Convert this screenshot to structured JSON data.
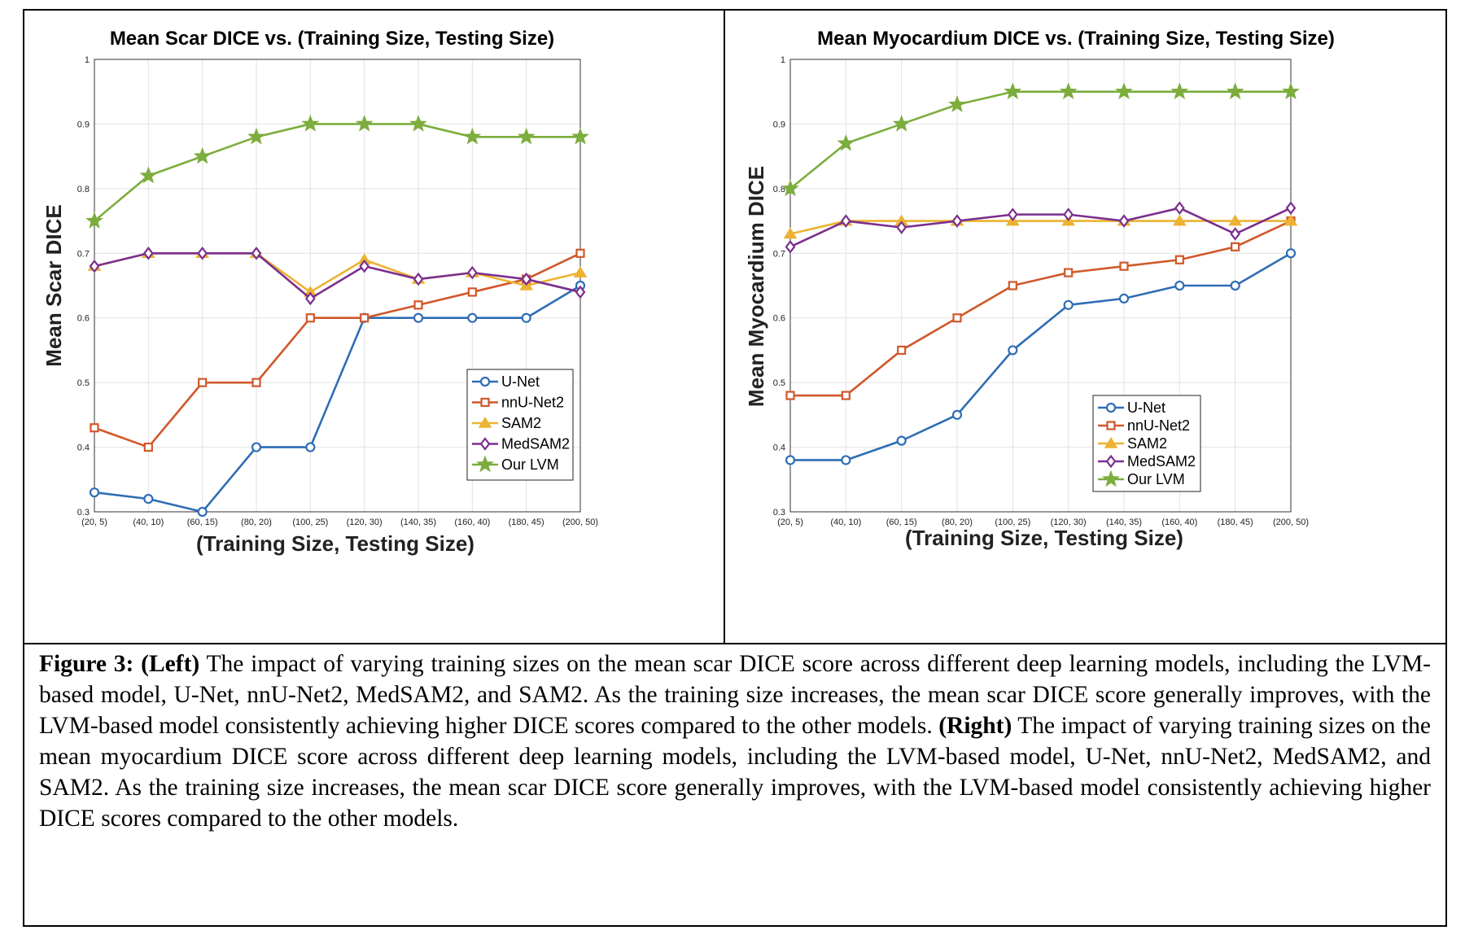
{
  "chart_data": [
    {
      "type": "line",
      "title": "Mean Scar DICE vs. (Training Size, Testing Size)",
      "xlabel": "(Training Size, Testing Size)",
      "ylabel": "Mean Scar DICE",
      "categories": [
        "(20, 5)",
        "(40, 10)",
        "(60, 15)",
        "(80, 20)",
        "(100, 25)",
        "(120, 30)",
        "(140, 35)",
        "(160, 40)",
        "(180, 45)",
        "(200, 50)"
      ],
      "ylim": [
        0.3,
        1
      ],
      "yticks": [
        0.3,
        0.4,
        0.5,
        0.6,
        0.7,
        0.8,
        0.9,
        1
      ],
      "ytick_labels": [
        "0.3",
        "0.4",
        "0.5",
        "0.6",
        "0.7",
        "0.8",
        "0.9",
        "1"
      ],
      "grid": true,
      "legend_position": "bottom-right",
      "series": [
        {
          "name": "U-Net",
          "marker": "circle",
          "color": "#2f6db5",
          "values": [
            0.33,
            0.32,
            0.3,
            0.4,
            0.4,
            0.6,
            0.6,
            0.6,
            0.6,
            0.65
          ]
        },
        {
          "name": "nnU-Net2",
          "marker": "square",
          "color": "#d0582a",
          "values": [
            0.43,
            0.4,
            0.5,
            0.5,
            0.6,
            0.6,
            0.62,
            0.64,
            0.66,
            0.7
          ]
        },
        {
          "name": "SAM2",
          "marker": "triangle",
          "color": "#ecb332",
          "values": [
            0.68,
            0.7,
            0.7,
            0.7,
            0.64,
            0.69,
            0.66,
            0.67,
            0.65,
            0.67
          ]
        },
        {
          "name": "MedSAM2",
          "marker": "diamond",
          "color": "#7b2f8e",
          "values": [
            0.68,
            0.7,
            0.7,
            0.7,
            0.63,
            0.68,
            0.66,
            0.67,
            0.66,
            0.64
          ]
        },
        {
          "name": "Our LVM",
          "marker": "star",
          "color": "#7cad3d",
          "values": [
            0.75,
            0.82,
            0.85,
            0.88,
            0.9,
            0.9,
            0.9,
            0.88,
            0.88,
            0.88
          ]
        }
      ]
    },
    {
      "type": "line",
      "title": "Mean Myocardium DICE vs. (Training Size, Testing Size)",
      "xlabel": "(Training Size, Testing Size)",
      "ylabel": "Mean Myocardium DICE",
      "categories": [
        "(20, 5)",
        "(40, 10)",
        "(60, 15)",
        "(80, 20)",
        "(100, 25)",
        "(120, 30)",
        "(140, 35)",
        "(160, 40)",
        "(180, 45)",
        "(200, 50)"
      ],
      "ylim": [
        0.3,
        1
      ],
      "yticks": [
        0.3,
        0.4,
        0.5,
        0.6,
        0.7,
        0.8,
        0.9,
        1
      ],
      "ytick_labels": [
        "0.3",
        "0.4",
        "0.5",
        "0.6",
        "0.7",
        "0.8",
        "0.9",
        "1"
      ],
      "grid": true,
      "legend_position": "bottom-right",
      "series": [
        {
          "name": "U-Net",
          "marker": "circle",
          "color": "#2f6db5",
          "values": [
            0.38,
            0.38,
            0.41,
            0.45,
            0.55,
            0.62,
            0.63,
            0.65,
            0.65,
            0.7
          ]
        },
        {
          "name": "nnU-Net2",
          "marker": "square",
          "color": "#d0582a",
          "values": [
            0.48,
            0.48,
            0.55,
            0.6,
            0.65,
            0.67,
            0.68,
            0.69,
            0.71,
            0.75
          ]
        },
        {
          "name": "SAM2",
          "marker": "triangle",
          "color": "#ecb332",
          "values": [
            0.73,
            0.75,
            0.75,
            0.75,
            0.75,
            0.75,
            0.75,
            0.75,
            0.75,
            0.75
          ]
        },
        {
          "name": "MedSAM2",
          "marker": "diamond",
          "color": "#7b2f8e",
          "values": [
            0.71,
            0.75,
            0.74,
            0.75,
            0.76,
            0.76,
            0.75,
            0.77,
            0.73,
            0.77
          ]
        },
        {
          "name": "Our LVM",
          "marker": "star",
          "color": "#7cad3d",
          "values": [
            0.8,
            0.87,
            0.9,
            0.93,
            0.95,
            0.95,
            0.95,
            0.95,
            0.95,
            0.95
          ]
        }
      ]
    }
  ],
  "caption": {
    "figure_label": "Figure 3:",
    "left_label": "(Left)",
    "left_text": "The impact of varying training sizes on the mean scar DICE score across different deep learning models, including the LVM-based model, U-Net, nnU-Net2, MedSAM2, and SAM2. As the training size increases, the mean scar DICE score generally improves, with the LVM-based model consistently achieving higher DICE scores compared to the other models.",
    "right_label": "(Right)",
    "right_text": "The impact of varying training sizes on the mean myocardium DICE score across different deep learning models, including the LVM-based model, U-Net, nnU-Net2, MedSAM2, and SAM2. As the training size increases, the mean scar DICE score generally improves, with the LVM-based model consistently achieving higher DICE scores compared to the other models."
  }
}
